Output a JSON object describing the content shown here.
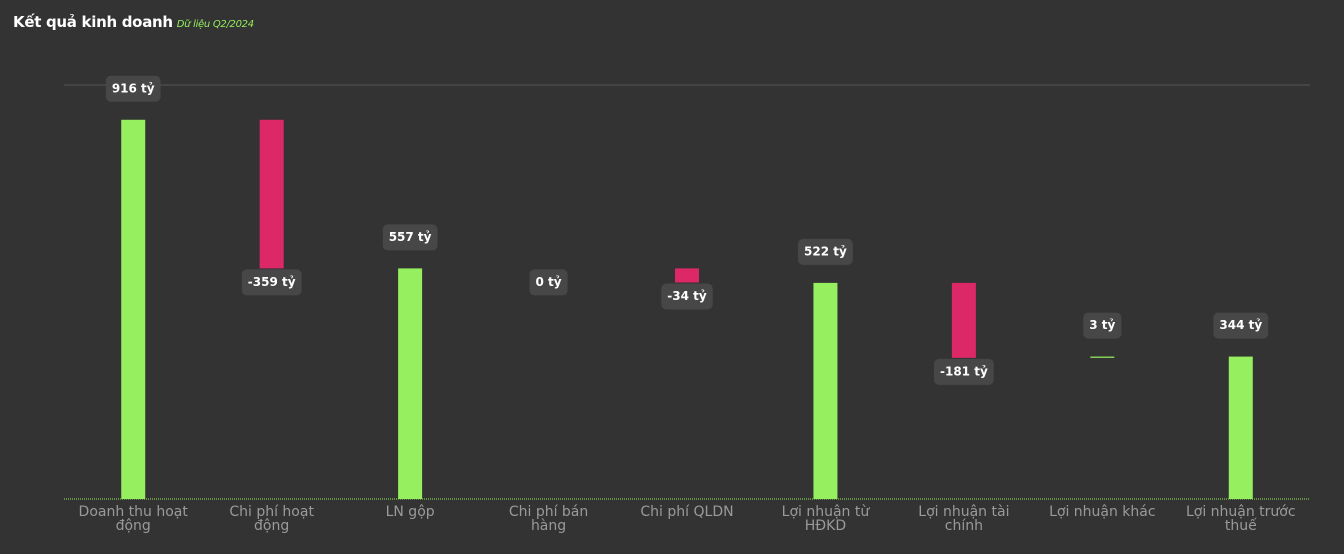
{
  "chart_data": {
    "type": "waterfall",
    "title": "Kết quả kinh doanh",
    "subtitle": "Dữ liệu Q2/2024",
    "categories": [
      "Doanh thu hoạt động",
      "Chi phí hoạt động",
      "LN gộp",
      "Chi phí bán hàng",
      "Chi phí QLDN",
      "Lợi nhuận từ HĐKD",
      "Lợi nhuận tài chính",
      "Lợi nhuận khác",
      "Lợi nhuận trước thuế"
    ],
    "values": [
      916,
      -359,
      557,
      0,
      -34,
      522,
      -181,
      3,
      344
    ],
    "value_labels": [
      "916 tỷ",
      "-359 tỷ",
      "557 tỷ",
      "0 tỷ",
      "-34 tỷ",
      "522 tỷ",
      "-181 tỷ",
      "3 tỷ",
      "344 tỷ"
    ],
    "measure": [
      "absolute",
      "relative",
      "absolute",
      "relative",
      "relative",
      "absolute",
      "relative",
      "relative",
      "absolute"
    ],
    "positive_color": "#95ef5f",
    "negative_color": "#dc2867",
    "ylim": [
      0,
      1000
    ]
  }
}
